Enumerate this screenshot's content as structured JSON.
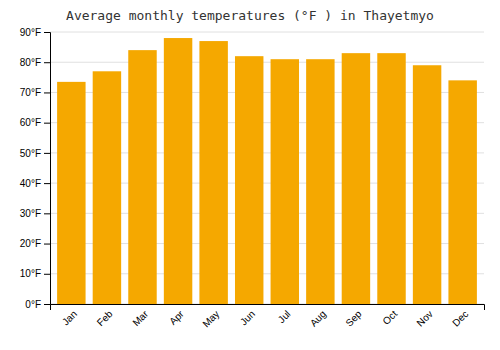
{
  "chart_data": {
    "type": "bar",
    "title": "Average monthly temperatures (°F ) in Thayetmyo",
    "categories": [
      "Jan",
      "Feb",
      "Mar",
      "Apr",
      "May",
      "Jun",
      "Jul",
      "Aug",
      "Sep",
      "Oct",
      "Nov",
      "Dec"
    ],
    "values": [
      73.5,
      77.0,
      84.0,
      88.0,
      87.0,
      82.0,
      81.0,
      81.0,
      83.0,
      83.0,
      79.0,
      74.0
    ],
    "color": "#F5A800",
    "ylim": [
      0,
      90
    ],
    "yticks": [
      {
        "value": 0,
        "label": "0°F"
      },
      {
        "value": 10,
        "label": "10°F"
      },
      {
        "value": 20,
        "label": "20°F"
      },
      {
        "value": 30,
        "label": "30°F"
      },
      {
        "value": 40,
        "label": "40°F"
      },
      {
        "value": 50,
        "label": "50°F"
      },
      {
        "value": 60,
        "label": "60°F"
      },
      {
        "value": 70,
        "label": "70°F"
      },
      {
        "value": 80,
        "label": "80°F"
      },
      {
        "value": 90,
        "label": "90°F"
      }
    ],
    "grid": true
  }
}
